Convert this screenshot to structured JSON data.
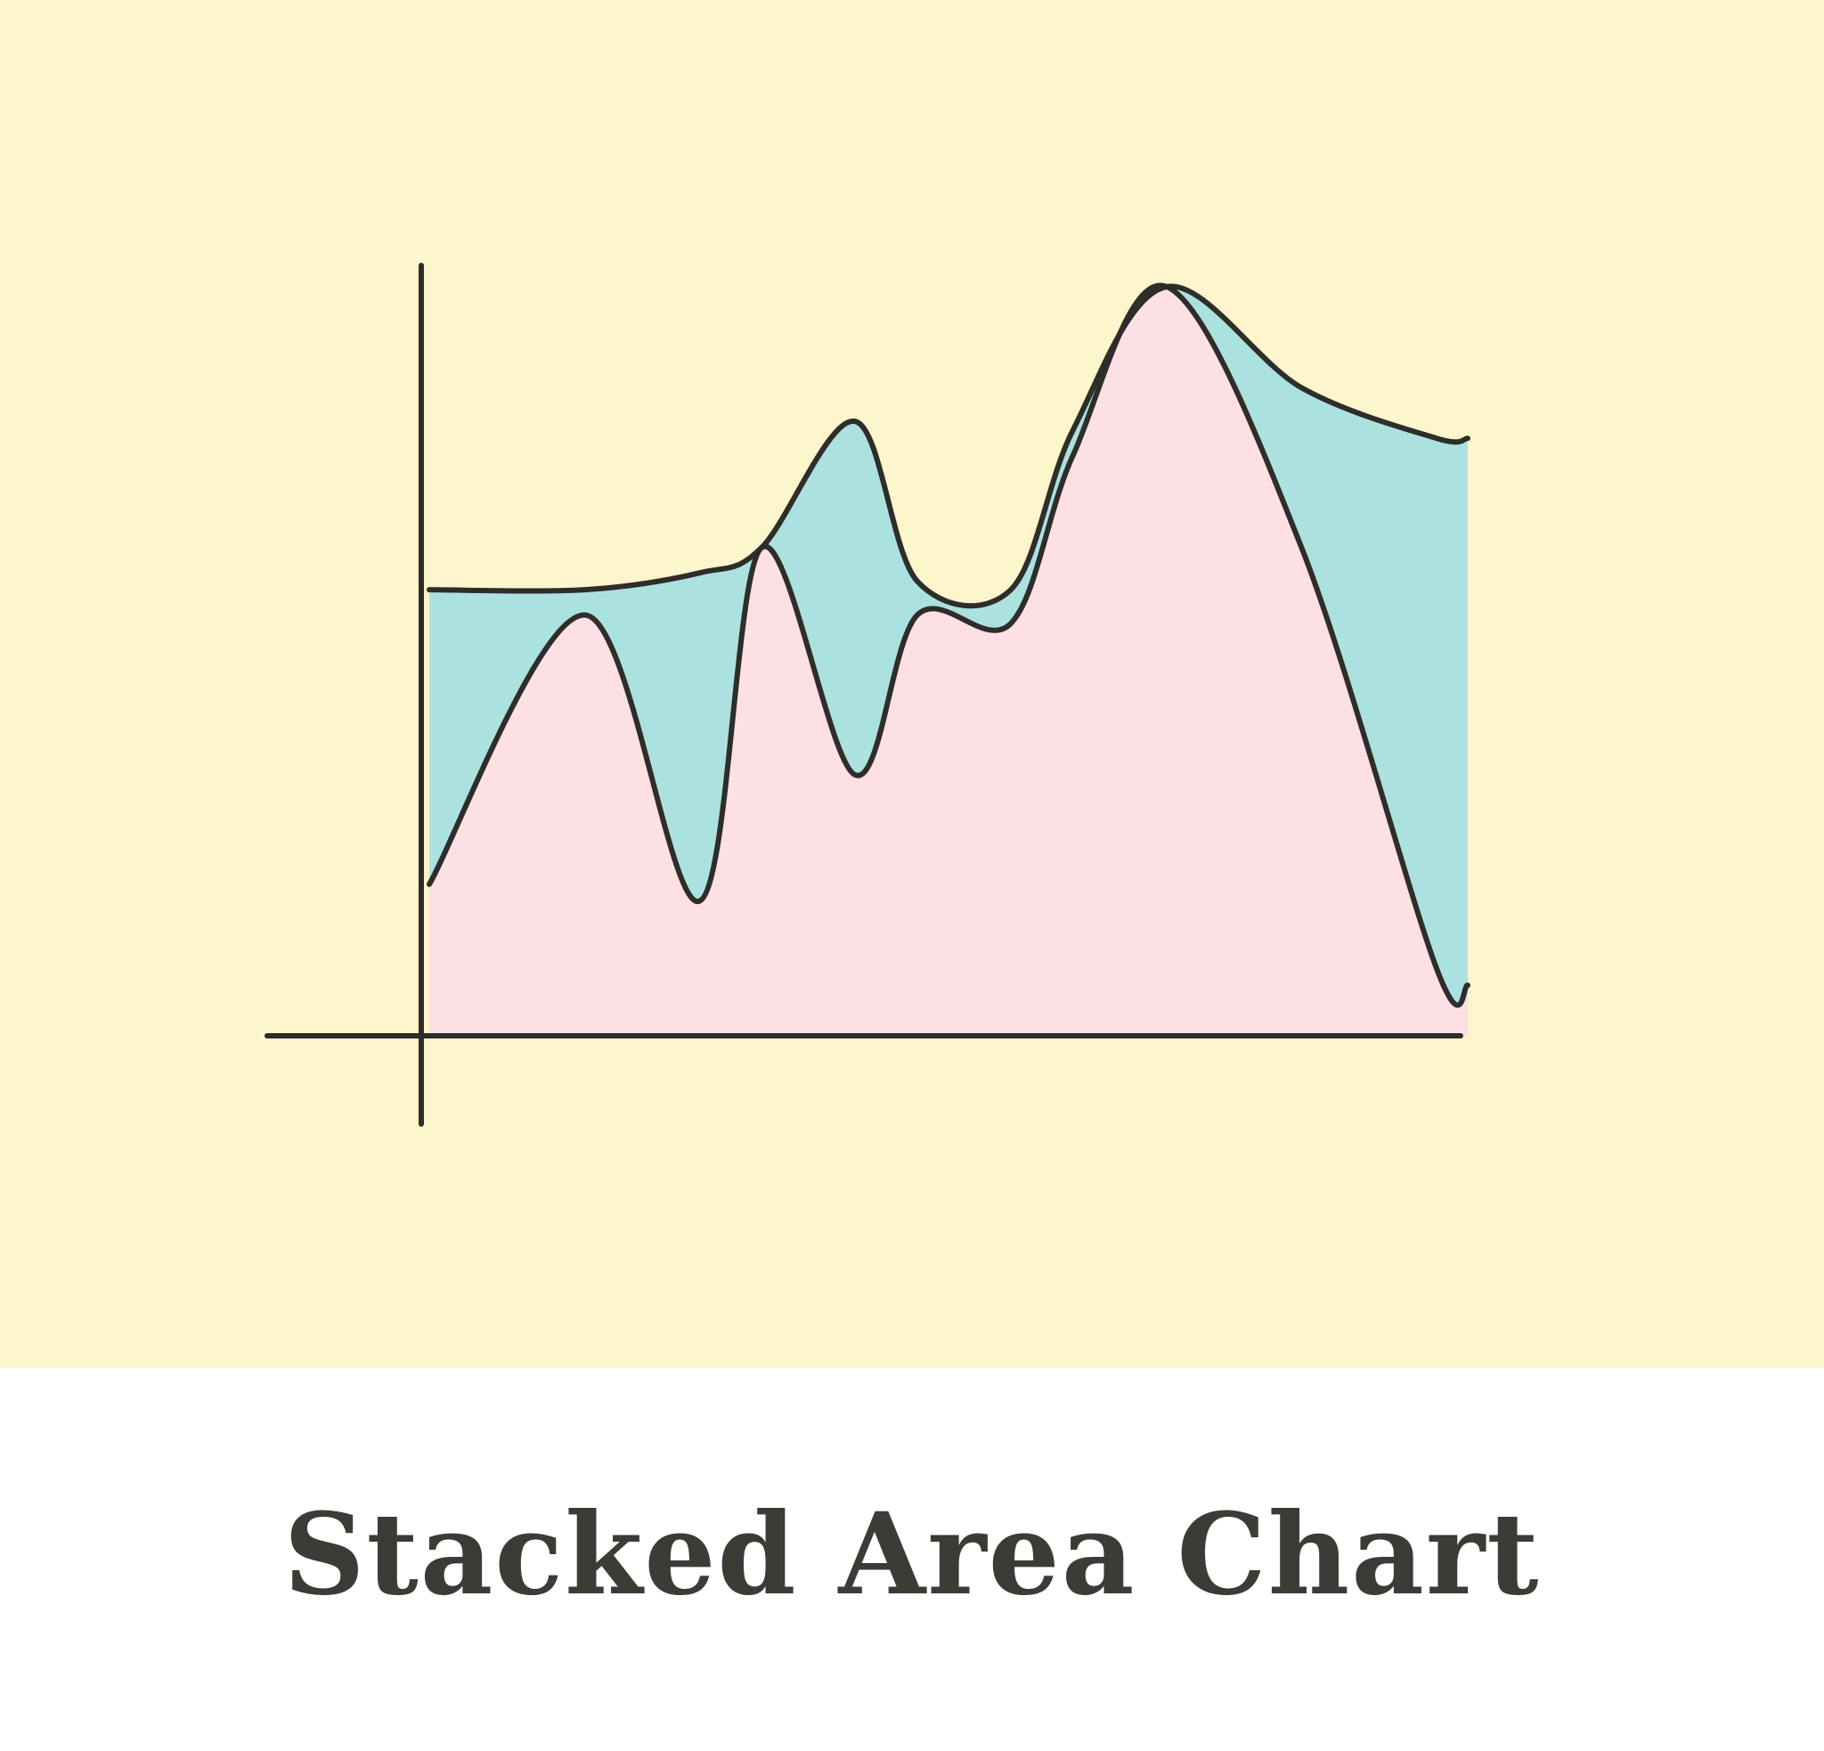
{
  "caption": {
    "title": "Stacked Area Chart"
  },
  "colors": {
    "background": "#fdf5cb",
    "series_bottom": "#fde0e4",
    "series_top": "#abe2e0",
    "ink": "#2f2d2a"
  },
  "chart_data": {
    "type": "area",
    "stacked": true,
    "title": "",
    "xlabel": "",
    "ylabel": "",
    "x": [
      0,
      0.15,
      0.26,
      0.32,
      0.41,
      0.47,
      0.56,
      0.62,
      0.71,
      0.84,
      0.97,
      1.0
    ],
    "xlim": [
      0,
      1
    ],
    "ylim": [
      0,
      100
    ],
    "grid": false,
    "legend": "none",
    "series": [
      {
        "values": [
          18,
          50,
          16,
          58,
          31,
          50,
          49,
          69,
          89,
          58,
          8,
          6
        ]
      },
      {
        "values": [
          35,
          3,
          39,
          0,
          42,
          4,
          4,
          3,
          0,
          19,
          63,
          65
        ]
      }
    ]
  }
}
